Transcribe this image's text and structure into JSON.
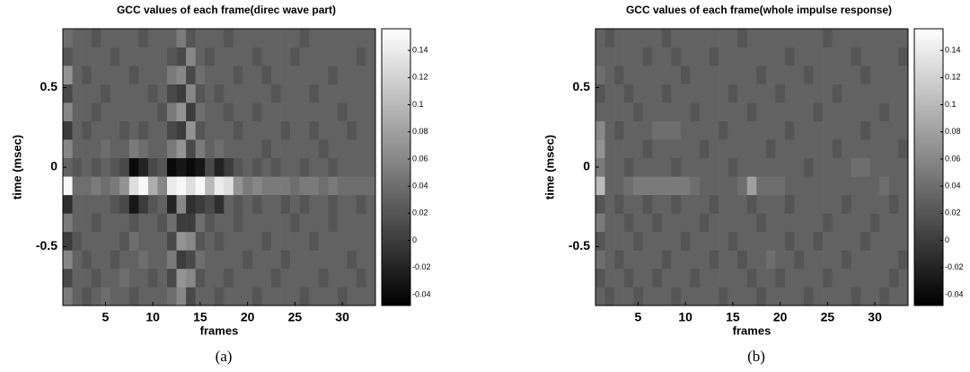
{
  "chart_data": [
    {
      "type": "heatmap",
      "title": "GCC values of each frame(direc wave part)",
      "xlabel": "frames",
      "ylabel": "time (msec)",
      "caption": "(a)",
      "colormap": "gray",
      "x": [
        1,
        2,
        3,
        4,
        5,
        6,
        7,
        8,
        9,
        10,
        11,
        12,
        13,
        14,
        15,
        16,
        17,
        18,
        19,
        20,
        21,
        22,
        23,
        24,
        25,
        26,
        27,
        28,
        29,
        30,
        31,
        32,
        33
      ],
      "y": [
        -0.812,
        -0.696,
        -0.58,
        -0.464,
        -0.348,
        -0.232,
        -0.116,
        0,
        0.116,
        0.232,
        0.348,
        0.464,
        0.58,
        0.696,
        0.812
      ],
      "z": [
        [
          0.05,
          0.03,
          0.02,
          0.03,
          0.04,
          0.03,
          0.03,
          0.02,
          0.03,
          0.03,
          0.03,
          0.04,
          0.06,
          0.01,
          0.03,
          0.03,
          0.02,
          0.03,
          0.03,
          0.03,
          0.02,
          0.03,
          0.03,
          0.03,
          0.03,
          0.02,
          0.03,
          0.03,
          0.03,
          0.02,
          0.03,
          0.03,
          0.03
        ],
        [
          0.01,
          0.03,
          0.03,
          0.02,
          0.03,
          0.03,
          0.04,
          0.03,
          0.03,
          0.02,
          0.03,
          0.01,
          0.07,
          0.06,
          0.02,
          0.03,
          0.03,
          0.02,
          0.03,
          0.03,
          0.03,
          0.03,
          0.02,
          0.03,
          0.03,
          0.03,
          0.03,
          0.02,
          0.03,
          0.03,
          0.03,
          0.02,
          0.03
        ],
        [
          0.06,
          0.03,
          0.02,
          0.03,
          0.03,
          0.02,
          0.03,
          0.03,
          0.04,
          0.03,
          0.03,
          0.05,
          0.0,
          0.01,
          0.04,
          0.03,
          0.03,
          0.03,
          0.03,
          0.02,
          0.03,
          0.03,
          0.03,
          0.02,
          0.03,
          0.03,
          0.03,
          0.03,
          0.03,
          0.03,
          0.02,
          0.03,
          0.03
        ],
        [
          0.0,
          0.02,
          0.03,
          0.03,
          0.03,
          0.03,
          0.02,
          0.04,
          0.03,
          0.03,
          0.03,
          0.01,
          0.07,
          0.06,
          0.02,
          0.03,
          0.02,
          0.03,
          0.03,
          0.03,
          0.03,
          0.02,
          0.03,
          0.03,
          0.03,
          0.03,
          0.02,
          0.03,
          0.03,
          0.03,
          0.03,
          0.03,
          0.03
        ],
        [
          0.05,
          0.03,
          0.03,
          0.02,
          0.03,
          0.03,
          0.03,
          0.02,
          0.03,
          0.03,
          0.02,
          0.04,
          0.0,
          0.0,
          0.04,
          0.02,
          0.03,
          0.03,
          0.02,
          0.03,
          0.03,
          0.03,
          0.03,
          0.03,
          0.02,
          0.03,
          0.03,
          0.03,
          0.02,
          0.03,
          0.03,
          0.03,
          0.03
        ],
        [
          -0.01,
          0.03,
          0.03,
          0.03,
          0.03,
          0.02,
          0.01,
          -0.03,
          0.0,
          0.02,
          0.03,
          -0.02,
          0.06,
          -0.01,
          0.0,
          0.01,
          -0.01,
          0.03,
          0.02,
          0.03,
          0.02,
          0.03,
          0.03,
          0.02,
          0.03,
          0.02,
          0.03,
          0.03,
          0.02,
          0.03,
          0.03,
          0.02,
          0.03
        ],
        [
          0.15,
          0.04,
          0.04,
          0.05,
          0.04,
          0.05,
          0.07,
          0.13,
          0.15,
          0.09,
          0.06,
          0.14,
          0.15,
          0.13,
          0.15,
          0.1,
          0.14,
          0.13,
          0.07,
          0.05,
          0.06,
          0.05,
          0.05,
          0.05,
          0.04,
          0.05,
          0.05,
          0.04,
          0.05,
          0.04,
          0.04,
          0.04,
          0.04
        ],
        [
          0.03,
          0.02,
          0.03,
          0.02,
          0.03,
          0.02,
          0.01,
          -0.04,
          -0.02,
          0.01,
          0.02,
          -0.04,
          -0.03,
          -0.04,
          -0.03,
          0.01,
          -0.02,
          0.0,
          0.02,
          0.03,
          0.02,
          0.03,
          0.02,
          0.03,
          0.03,
          0.02,
          0.03,
          0.03,
          0.02,
          0.03,
          0.03,
          0.03,
          0.03
        ],
        [
          0.06,
          0.03,
          0.03,
          0.03,
          0.04,
          0.03,
          0.03,
          0.05,
          0.04,
          0.03,
          0.03,
          0.05,
          0.07,
          0.01,
          0.05,
          0.03,
          0.04,
          0.03,
          0.03,
          0.03,
          0.03,
          0.02,
          0.03,
          0.03,
          0.03,
          0.03,
          0.03,
          0.02,
          0.03,
          0.03,
          0.03,
          0.03,
          0.03
        ],
        [
          0.0,
          0.03,
          0.02,
          0.03,
          0.03,
          0.03,
          0.02,
          0.03,
          0.02,
          0.03,
          0.03,
          0.01,
          0.0,
          0.07,
          0.02,
          0.03,
          0.03,
          0.03,
          0.02,
          0.03,
          0.03,
          0.03,
          0.03,
          0.02,
          0.03,
          0.03,
          0.02,
          0.03,
          0.03,
          0.03,
          0.02,
          0.03,
          0.03
        ],
        [
          0.06,
          0.03,
          0.03,
          0.02,
          0.03,
          0.03,
          0.03,
          0.03,
          0.03,
          0.03,
          0.02,
          0.05,
          0.07,
          0.0,
          0.04,
          0.03,
          0.03,
          0.02,
          0.03,
          0.03,
          0.02,
          0.03,
          0.03,
          0.03,
          0.03,
          0.03,
          0.03,
          0.03,
          0.03,
          0.02,
          0.03,
          0.03,
          0.03
        ],
        [
          0.01,
          0.03,
          0.03,
          0.03,
          0.02,
          0.03,
          0.03,
          0.03,
          0.03,
          0.02,
          0.03,
          0.01,
          0.0,
          0.06,
          0.02,
          0.03,
          0.02,
          0.03,
          0.03,
          0.03,
          0.03,
          0.03,
          0.02,
          0.03,
          0.03,
          0.03,
          0.02,
          0.03,
          0.03,
          0.03,
          0.03,
          0.03,
          0.03
        ],
        [
          0.07,
          0.03,
          0.02,
          0.03,
          0.03,
          0.03,
          0.03,
          0.02,
          0.03,
          0.03,
          0.03,
          0.05,
          0.06,
          0.01,
          0.04,
          0.03,
          0.03,
          0.03,
          0.02,
          0.03,
          0.03,
          0.02,
          0.03,
          0.03,
          0.03,
          0.03,
          0.03,
          0.03,
          0.02,
          0.03,
          0.03,
          0.03,
          0.03
        ],
        [
          0.02,
          0.03,
          0.03,
          0.03,
          0.03,
          0.02,
          0.03,
          0.03,
          0.03,
          0.03,
          0.03,
          0.02,
          0.01,
          0.06,
          0.03,
          0.02,
          0.03,
          0.03,
          0.03,
          0.03,
          0.02,
          0.03,
          0.03,
          0.03,
          0.02,
          0.03,
          0.03,
          0.03,
          0.03,
          0.03,
          0.03,
          0.02,
          0.03
        ],
        [
          0.04,
          0.03,
          0.03,
          0.02,
          0.03,
          0.03,
          0.03,
          0.03,
          0.02,
          0.03,
          0.03,
          0.03,
          0.05,
          0.02,
          0.03,
          0.03,
          0.03,
          0.02,
          0.03,
          0.03,
          0.03,
          0.03,
          0.03,
          0.03,
          0.03,
          0.02,
          0.03,
          0.03,
          0.03,
          0.03,
          0.03,
          0.03,
          0.03
        ]
      ],
      "xlim": [
        0.5,
        33.5
      ],
      "xticks": [
        5,
        10,
        15,
        20,
        25,
        30
      ],
      "ylim": [
        -0.87,
        0.87
      ],
      "yticks": [
        -0.5,
        0,
        0.5
      ],
      "zlim": [
        -0.048,
        0.156
      ],
      "zticks": [
        -0.04,
        -0.02,
        0,
        0.02,
        0.04,
        0.06,
        0.08,
        0.1,
        0.12,
        0.14
      ]
    },
    {
      "type": "heatmap",
      "title": "GCC values of each frame(whole impulse response)",
      "xlabel": "frames",
      "ylabel": "time (msec)",
      "caption": "(b)",
      "colormap": "gray",
      "x": [
        1,
        2,
        3,
        4,
        5,
        6,
        7,
        8,
        9,
        10,
        11,
        12,
        13,
        14,
        15,
        16,
        17,
        18,
        19,
        20,
        21,
        22,
        23,
        24,
        25,
        26,
        27,
        28,
        29,
        30,
        31,
        32,
        33
      ],
      "y": [
        -0.812,
        -0.696,
        -0.58,
        -0.464,
        -0.348,
        -0.232,
        -0.116,
        0,
        0.116,
        0.232,
        0.348,
        0.464,
        0.58,
        0.696,
        0.812
      ],
      "z": [
        [
          0.03,
          0.02,
          0.03,
          0.03,
          0.02,
          0.03,
          0.03,
          0.03,
          0.02,
          0.03,
          0.03,
          0.03,
          0.03,
          0.02,
          0.03,
          0.03,
          0.03,
          0.02,
          0.03,
          0.03,
          0.03,
          0.03,
          0.02,
          0.03,
          0.03,
          0.03,
          0.03,
          0.02,
          0.03,
          0.03,
          0.02,
          0.03,
          0.03
        ],
        [
          0.02,
          0.03,
          0.03,
          0.02,
          0.03,
          0.03,
          0.02,
          0.03,
          0.03,
          0.03,
          0.02,
          0.03,
          0.03,
          0.03,
          0.03,
          0.03,
          0.02,
          0.03,
          0.03,
          0.02,
          0.03,
          0.03,
          0.03,
          0.03,
          0.02,
          0.03,
          0.03,
          0.03,
          0.03,
          0.03,
          0.03,
          0.02,
          0.03
        ],
        [
          0.04,
          0.03,
          0.02,
          0.03,
          0.03,
          0.03,
          0.03,
          0.02,
          0.03,
          0.03,
          0.03,
          0.03,
          0.02,
          0.03,
          0.03,
          0.02,
          0.03,
          0.03,
          0.04,
          0.03,
          0.03,
          0.02,
          0.03,
          0.03,
          0.03,
          0.03,
          0.02,
          0.03,
          0.03,
          0.03,
          0.03,
          0.03,
          0.02
        ],
        [
          0.02,
          0.03,
          0.03,
          0.03,
          0.02,
          0.03,
          0.03,
          0.03,
          0.03,
          0.02,
          0.03,
          0.03,
          0.03,
          0.03,
          0.02,
          0.03,
          0.03,
          0.03,
          0.03,
          0.03,
          0.02,
          0.03,
          0.03,
          0.02,
          0.03,
          0.03,
          0.03,
          0.03,
          0.02,
          0.03,
          0.03,
          0.03,
          0.03
        ],
        [
          0.05,
          0.03,
          0.03,
          0.02,
          0.03,
          0.03,
          0.02,
          0.03,
          0.03,
          0.03,
          0.03,
          0.02,
          0.03,
          0.03,
          0.03,
          0.03,
          0.03,
          0.02,
          0.03,
          0.03,
          0.03,
          0.03,
          0.03,
          0.03,
          0.02,
          0.03,
          0.03,
          0.03,
          0.03,
          0.02,
          0.03,
          0.03,
          0.03
        ],
        [
          0.02,
          0.03,
          0.02,
          0.03,
          0.03,
          0.02,
          0.03,
          0.03,
          0.02,
          0.03,
          0.03,
          0.03,
          0.02,
          0.03,
          0.03,
          0.03,
          0.02,
          0.03,
          0.03,
          0.03,
          0.02,
          0.03,
          0.03,
          0.03,
          0.03,
          0.03,
          0.02,
          0.03,
          0.03,
          0.03,
          0.03,
          0.02,
          0.03
        ],
        [
          0.1,
          0.03,
          0.03,
          0.04,
          0.05,
          0.05,
          0.05,
          0.05,
          0.05,
          0.05,
          0.04,
          0.03,
          0.03,
          0.03,
          0.03,
          0.04,
          0.08,
          0.04,
          0.04,
          0.04,
          0.03,
          0.03,
          0.03,
          0.03,
          0.03,
          0.03,
          0.03,
          0.03,
          0.03,
          0.03,
          0.04,
          0.03,
          0.03
        ],
        [
          0.05,
          0.03,
          0.03,
          0.02,
          0.03,
          0.03,
          0.03,
          0.03,
          0.02,
          0.03,
          0.03,
          0.03,
          0.03,
          0.03,
          0.02,
          0.03,
          0.03,
          0.03,
          0.03,
          0.03,
          0.03,
          0.03,
          0.02,
          0.03,
          0.03,
          0.03,
          0.03,
          0.04,
          0.04,
          0.03,
          0.03,
          0.03,
          0.03
        ],
        [
          0.07,
          0.03,
          0.03,
          0.03,
          0.03,
          0.02,
          0.03,
          0.03,
          0.03,
          0.03,
          0.03,
          0.02,
          0.03,
          0.03,
          0.03,
          0.03,
          0.03,
          0.03,
          0.02,
          0.03,
          0.03,
          0.03,
          0.03,
          0.03,
          0.03,
          0.02,
          0.03,
          0.03,
          0.03,
          0.03,
          0.03,
          0.03,
          0.02
        ],
        [
          0.06,
          0.03,
          0.02,
          0.03,
          0.03,
          0.03,
          0.04,
          0.04,
          0.04,
          0.03,
          0.03,
          0.03,
          0.03,
          0.02,
          0.03,
          0.03,
          0.03,
          0.03,
          0.03,
          0.03,
          0.02,
          0.03,
          0.03,
          0.03,
          0.03,
          0.03,
          0.03,
          0.03,
          0.02,
          0.03,
          0.03,
          0.03,
          0.03
        ],
        [
          0.03,
          0.03,
          0.03,
          0.03,
          0.02,
          0.03,
          0.03,
          0.03,
          0.03,
          0.03,
          0.02,
          0.03,
          0.03,
          0.03,
          0.03,
          0.03,
          0.02,
          0.03,
          0.03,
          0.03,
          0.03,
          0.03,
          0.03,
          0.02,
          0.03,
          0.03,
          0.03,
          0.03,
          0.03,
          0.03,
          0.02,
          0.03,
          0.03
        ],
        [
          0.02,
          0.03,
          0.03,
          0.02,
          0.03,
          0.03,
          0.03,
          0.02,
          0.03,
          0.03,
          0.03,
          0.03,
          0.03,
          0.03,
          0.02,
          0.03,
          0.03,
          0.03,
          0.03,
          0.02,
          0.03,
          0.03,
          0.03,
          0.03,
          0.03,
          0.02,
          0.03,
          0.03,
          0.03,
          0.03,
          0.03,
          0.03,
          0.03
        ],
        [
          0.04,
          0.03,
          0.02,
          0.03,
          0.03,
          0.03,
          0.03,
          0.03,
          0.03,
          0.02,
          0.03,
          0.03,
          0.03,
          0.03,
          0.03,
          0.03,
          0.03,
          0.02,
          0.03,
          0.03,
          0.03,
          0.03,
          0.02,
          0.03,
          0.03,
          0.03,
          0.03,
          0.03,
          0.02,
          0.03,
          0.03,
          0.03,
          0.03
        ],
        [
          0.03,
          0.03,
          0.03,
          0.03,
          0.03,
          0.02,
          0.03,
          0.03,
          0.02,
          0.03,
          0.03,
          0.03,
          0.02,
          0.03,
          0.03,
          0.03,
          0.03,
          0.03,
          0.03,
          0.03,
          0.02,
          0.03,
          0.03,
          0.03,
          0.03,
          0.03,
          0.03,
          0.02,
          0.03,
          0.03,
          0.03,
          0.03,
          0.02
        ],
        [
          0.03,
          0.02,
          0.03,
          0.03,
          0.03,
          0.03,
          0.03,
          0.02,
          0.03,
          0.03,
          0.03,
          0.03,
          0.03,
          0.03,
          0.03,
          0.02,
          0.03,
          0.03,
          0.03,
          0.03,
          0.03,
          0.03,
          0.03,
          0.03,
          0.02,
          0.03,
          0.03,
          0.03,
          0.03,
          0.03,
          0.03,
          0.03,
          0.03
        ]
      ],
      "xlim": [
        0.5,
        33.5
      ],
      "xticks": [
        5,
        10,
        15,
        20,
        25,
        30
      ],
      "ylim": [
        -0.87,
        0.87
      ],
      "yticks": [
        -0.5,
        0,
        0.5
      ],
      "zlim": [
        -0.048,
        0.156
      ],
      "zticks": [
        -0.04,
        -0.02,
        0,
        0.02,
        0.04,
        0.06,
        0.08,
        0.1,
        0.12,
        0.14
      ]
    }
  ]
}
